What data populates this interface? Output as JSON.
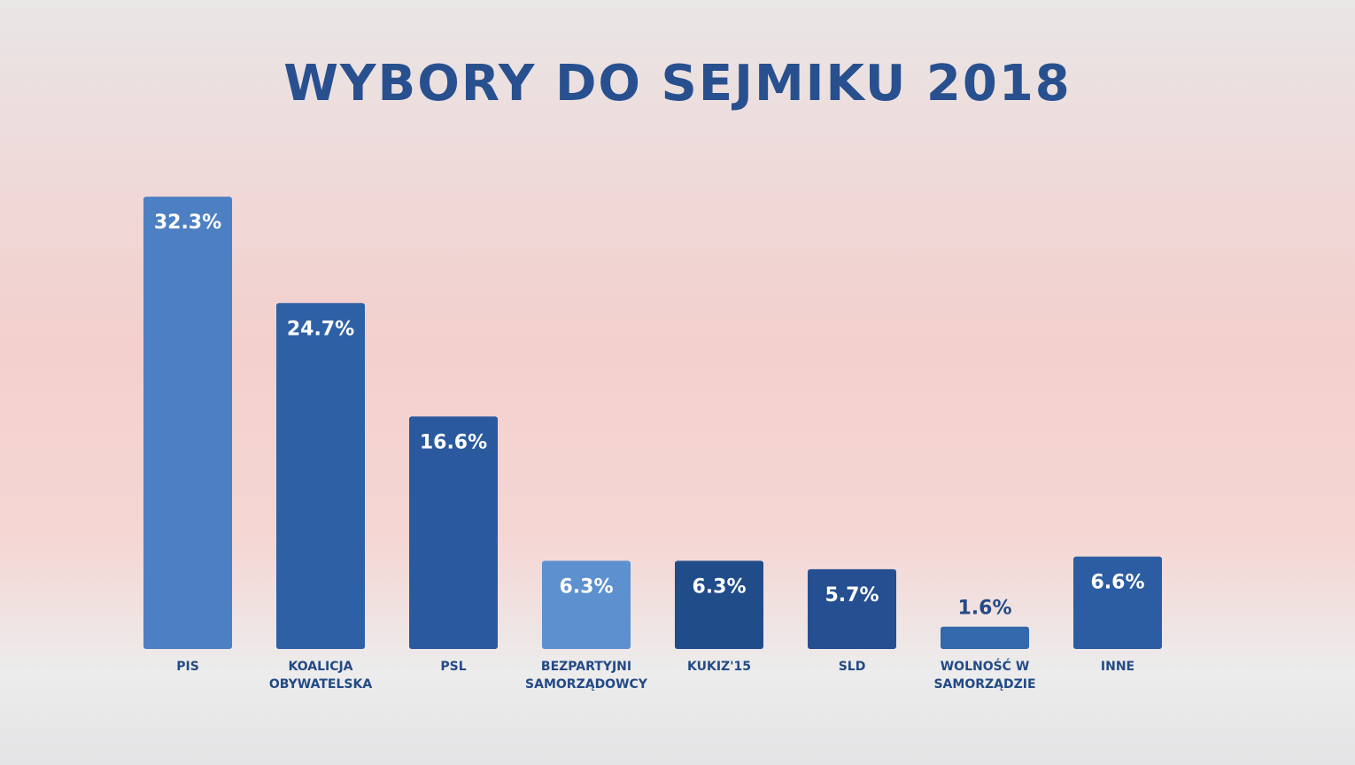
{
  "chart_data": {
    "type": "bar",
    "title": "WYBORY DO SEJMIKU 2018",
    "categories": [
      "PIS",
      "KOALICJA OBYWATELSKA",
      "PSL",
      "BEZPARTYJNI SAMORZĄDOWCY",
      "KUKIZ'15",
      "SLD",
      "WOLNOŚĆ W SAMORZĄDZIE",
      "INNE"
    ],
    "values": [
      32.3,
      24.7,
      16.6,
      6.3,
      6.3,
      5.7,
      1.6,
      6.6
    ],
    "value_labels": [
      "32.3%",
      "24.7%",
      "16.6%",
      "6.3%",
      "6.3%",
      "5.7%",
      "1.6%",
      "6.6%"
    ],
    "colors": [
      "#4d80c2",
      "#2e60a6",
      "#2a599e",
      "#5d90cf",
      "#214c8a",
      "#254f90",
      "#3468ad",
      "#2c5da3"
    ],
    "ylim": [
      0,
      33
    ]
  }
}
